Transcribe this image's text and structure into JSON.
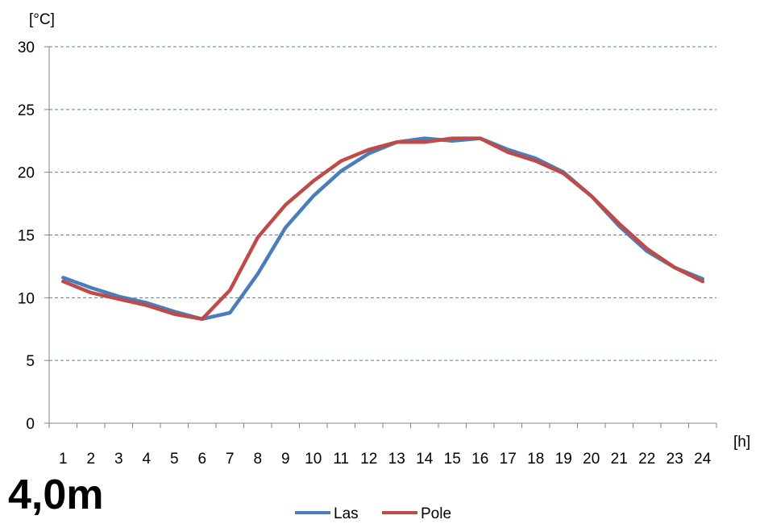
{
  "caption": "4,0m",
  "chart_data": {
    "type": "line",
    "ylabel": "[°C]",
    "xlabel": "[h]",
    "ylim": [
      0,
      30
    ],
    "yticks": [
      0,
      5,
      10,
      15,
      20,
      25,
      30
    ],
    "grid": true,
    "grid_style": "dashed horizontal",
    "legend_position": "bottom",
    "categories": [
      "1",
      "2",
      "3",
      "4",
      "5",
      "6",
      "7",
      "8",
      "9",
      "10",
      "11",
      "12",
      "13",
      "14",
      "15",
      "16",
      "17",
      "18",
      "19",
      "20",
      "21",
      "22",
      "23",
      "24"
    ],
    "series": [
      {
        "name": "Las",
        "color": "#4a7ebb",
        "values": [
          11.6,
          10.8,
          10.1,
          9.6,
          8.9,
          8.3,
          8.8,
          11.9,
          15.6,
          18.1,
          20.1,
          21.5,
          22.4,
          22.7,
          22.5,
          22.7,
          21.8,
          21.1,
          20.0,
          18.1,
          15.7,
          13.7,
          12.4,
          11.5
        ]
      },
      {
        "name": "Pole",
        "color": "#be4b48",
        "values": [
          11.3,
          10.4,
          9.9,
          9.4,
          8.7,
          8.3,
          10.6,
          14.8,
          17.4,
          19.3,
          20.9,
          21.8,
          22.4,
          22.4,
          22.7,
          22.7,
          21.6,
          20.9,
          19.9,
          18.1,
          15.9,
          13.9,
          12.4,
          11.3
        ]
      }
    ]
  }
}
